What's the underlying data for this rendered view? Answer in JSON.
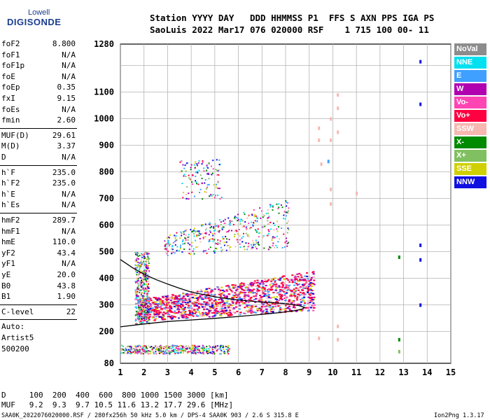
{
  "logo": {
    "top": "Lowell",
    "bottom": "DIGISONDE"
  },
  "header": {
    "line1": "Station YYYY DAY   DDD HHMMSS P1  FFS S AXN PPS IGA PS",
    "line2": "SaoLuis 2022 Mar17 076 020000 RSF    1 715 100 00- 11"
  },
  "params_group1": [
    {
      "name": "foF2",
      "value": "8.800"
    },
    {
      "name": "foF1",
      "value": "N/A"
    },
    {
      "name": "foF1p",
      "value": "N/A"
    },
    {
      "name": "foE",
      "value": "N/A"
    },
    {
      "name": "foEp",
      "value": "0.35"
    },
    {
      "name": "fxI",
      "value": "9.15"
    },
    {
      "name": "foEs",
      "value": "N/A"
    },
    {
      "name": "fmin",
      "value": "2.60"
    }
  ],
  "params_group2": [
    {
      "name": "MUF(D)",
      "value": "29.61"
    },
    {
      "name": "M(D)",
      "value": "3.37"
    },
    {
      "name": "D",
      "value": "N/A"
    }
  ],
  "params_group3": [
    {
      "name": "h`F",
      "value": "235.0"
    },
    {
      "name": "h`F2",
      "value": "235.0"
    },
    {
      "name": "h`E",
      "value": "N/A"
    },
    {
      "name": "h`Es",
      "value": "N/A"
    }
  ],
  "params_group4": [
    {
      "name": "hmF2",
      "value": "289.7"
    },
    {
      "name": "hmF1",
      "value": "N/A"
    },
    {
      "name": "hmE",
      "value": "110.0"
    },
    {
      "name": "yF2",
      "value": "43.4"
    },
    {
      "name": "yF1",
      "value": "N/A"
    },
    {
      "name": "yE",
      "value": "20.0"
    },
    {
      "name": "B0",
      "value": "43.8"
    },
    {
      "name": "B1",
      "value": "1.90"
    }
  ],
  "clevel": {
    "name": "C-level",
    "value": "22"
  },
  "notes": [
    "Auto:",
    "Artist5",
    "500200"
  ],
  "legend": [
    {
      "label": "NoVal",
      "color": "#8c8c8c"
    },
    {
      "label": "NNE",
      "color": "#00e0f0"
    },
    {
      "label": "E",
      "color": "#3fa0ff"
    },
    {
      "label": "W",
      "color": "#b000b0"
    },
    {
      "label": "Vo-",
      "color": "#ff44b4"
    },
    {
      "label": "Vo+",
      "color": "#ff0040"
    },
    {
      "label": "SSW",
      "color": "#f6b8b0"
    },
    {
      "label": "X-",
      "color": "#008a00"
    },
    {
      "label": "X+",
      "color": "#80c060"
    },
    {
      "label": "SSE",
      "color": "#d0d000"
    },
    {
      "label": "NNW",
      "color": "#1010e0"
    }
  ],
  "muf_table": {
    "d_row": "D     100  200  400  600  800 1000 1500 3000 [km]",
    "muf_row": "MUF   9.2  9.3  9.7 10.5 11.6 13.2 17.7 29.6 [MHz]"
  },
  "footer": {
    "left": "SAA0K_2022076020000.RSF / 280fx256h 50 kHz 5.0 km / DPS-4 SAA0K 903 / 2.6 S 315.8 E",
    "right": "Ion2Png 1.3.17"
  },
  "chart_data": {
    "type": "scatter",
    "xlim": [
      1,
      15
    ],
    "ylim": [
      80,
      1280
    ],
    "x_ticks": [
      1,
      2,
      3,
      4,
      5,
      6,
      7,
      8,
      9,
      10,
      11,
      12,
      13,
      14,
      15
    ],
    "y_ticks": [
      80,
      200,
      300,
      400,
      500,
      600,
      700,
      800,
      900,
      1000,
      1100,
      1280
    ],
    "x_gridlines": [
      1,
      2,
      3,
      4,
      5,
      6,
      7,
      8,
      9,
      10,
      11,
      12,
      13,
      14,
      15
    ],
    "y_gridlines": [
      200,
      300,
      400,
      500,
      600,
      700,
      800,
      900,
      1000,
      1100,
      1200
    ],
    "grid": true,
    "legend_position": "right",
    "trace_lower": [
      [
        1.0,
        217
      ],
      [
        2.0,
        228
      ],
      [
        3.0,
        237
      ],
      [
        4.0,
        243
      ],
      [
        5.0,
        249
      ],
      [
        6.0,
        256
      ],
      [
        7.0,
        264
      ],
      [
        7.8,
        271
      ],
      [
        8.4,
        278
      ],
      [
        8.7,
        284
      ],
      [
        8.8,
        290
      ],
      [
        8.6,
        296
      ],
      [
        8.2,
        302
      ],
      [
        7.6,
        307
      ]
    ],
    "trace_upper": [
      [
        1.0,
        470
      ],
      [
        1.5,
        440
      ],
      [
        2.0,
        415
      ],
      [
        2.5,
        395
      ],
      [
        3.0,
        378
      ],
      [
        3.5,
        362
      ],
      [
        4.0,
        348
      ],
      [
        5.0,
        330
      ],
      [
        6.0,
        318
      ],
      [
        7.0,
        310
      ],
      [
        7.6,
        307
      ]
    ],
    "scatter_regions": [
      {
        "name": "F2 main echo",
        "x_range": [
          1.7,
          9.2
        ],
        "y_from": [
          240,
          320
        ],
        "y_to": [
          280,
          430
        ],
        "density": "high"
      },
      {
        "name": "F2 second hop",
        "x_range": [
          2.8,
          8.1
        ],
        "y_from": [
          485,
          560
        ],
        "y_to": [
          515,
          700
        ],
        "density": "medium"
      },
      {
        "name": "low echo band",
        "x_range": [
          1.0,
          5.6
        ],
        "y_range": [
          118,
          150
        ],
        "density": "medium"
      },
      {
        "name": "third hop",
        "x_range": [
          3.5,
          5.3
        ],
        "y_range": [
          700,
          850
        ],
        "density": "low"
      },
      {
        "name": "lower F edge",
        "x_range": [
          1.6,
          2.2
        ],
        "y_range": [
          230,
          500
        ],
        "density": "medium"
      }
    ],
    "isolated_points": [
      {
        "x": 13.7,
        "y": 1215,
        "color": "#1010e0"
      },
      {
        "x": 13.7,
        "y": 1055,
        "color": "#1010e0"
      },
      {
        "x": 13.7,
        "y": 525,
        "color": "#1010e0"
      },
      {
        "x": 13.7,
        "y": 470,
        "color": "#1010e0"
      },
      {
        "x": 13.7,
        "y": 300,
        "color": "#1010e0"
      },
      {
        "x": 12.8,
        "y": 480,
        "color": "#008a00"
      },
      {
        "x": 12.8,
        "y": 170,
        "color": "#008a00"
      },
      {
        "x": 12.8,
        "y": 125,
        "color": "#80c060"
      },
      {
        "x": 10.2,
        "y": 1090,
        "color": "#f6b8b0"
      },
      {
        "x": 10.2,
        "y": 1040,
        "color": "#f6b8b0"
      },
      {
        "x": 10.2,
        "y": 950,
        "color": "#f6b8b0"
      },
      {
        "x": 10.2,
        "y": 220,
        "color": "#f6b8b0"
      },
      {
        "x": 10.2,
        "y": 170,
        "color": "#f6b8b0"
      },
      {
        "x": 9.4,
        "y": 965,
        "color": "#f6b8b0"
      },
      {
        "x": 9.4,
        "y": 920,
        "color": "#f6b8b0"
      },
      {
        "x": 9.5,
        "y": 830,
        "color": "#f6b8b0"
      },
      {
        "x": 9.4,
        "y": 175,
        "color": "#f6b8b0"
      },
      {
        "x": 9.9,
        "y": 1000,
        "color": "#f6b8b0"
      },
      {
        "x": 9.9,
        "y": 920,
        "color": "#f6b8b0"
      },
      {
        "x": 9.9,
        "y": 735,
        "color": "#f6b8b0"
      },
      {
        "x": 9.9,
        "y": 680,
        "color": "#f6b8b0"
      },
      {
        "x": 9.8,
        "y": 840,
        "color": "#3fa0ff"
      },
      {
        "x": 11.0,
        "y": 720,
        "color": "#f6b8b0"
      }
    ]
  }
}
